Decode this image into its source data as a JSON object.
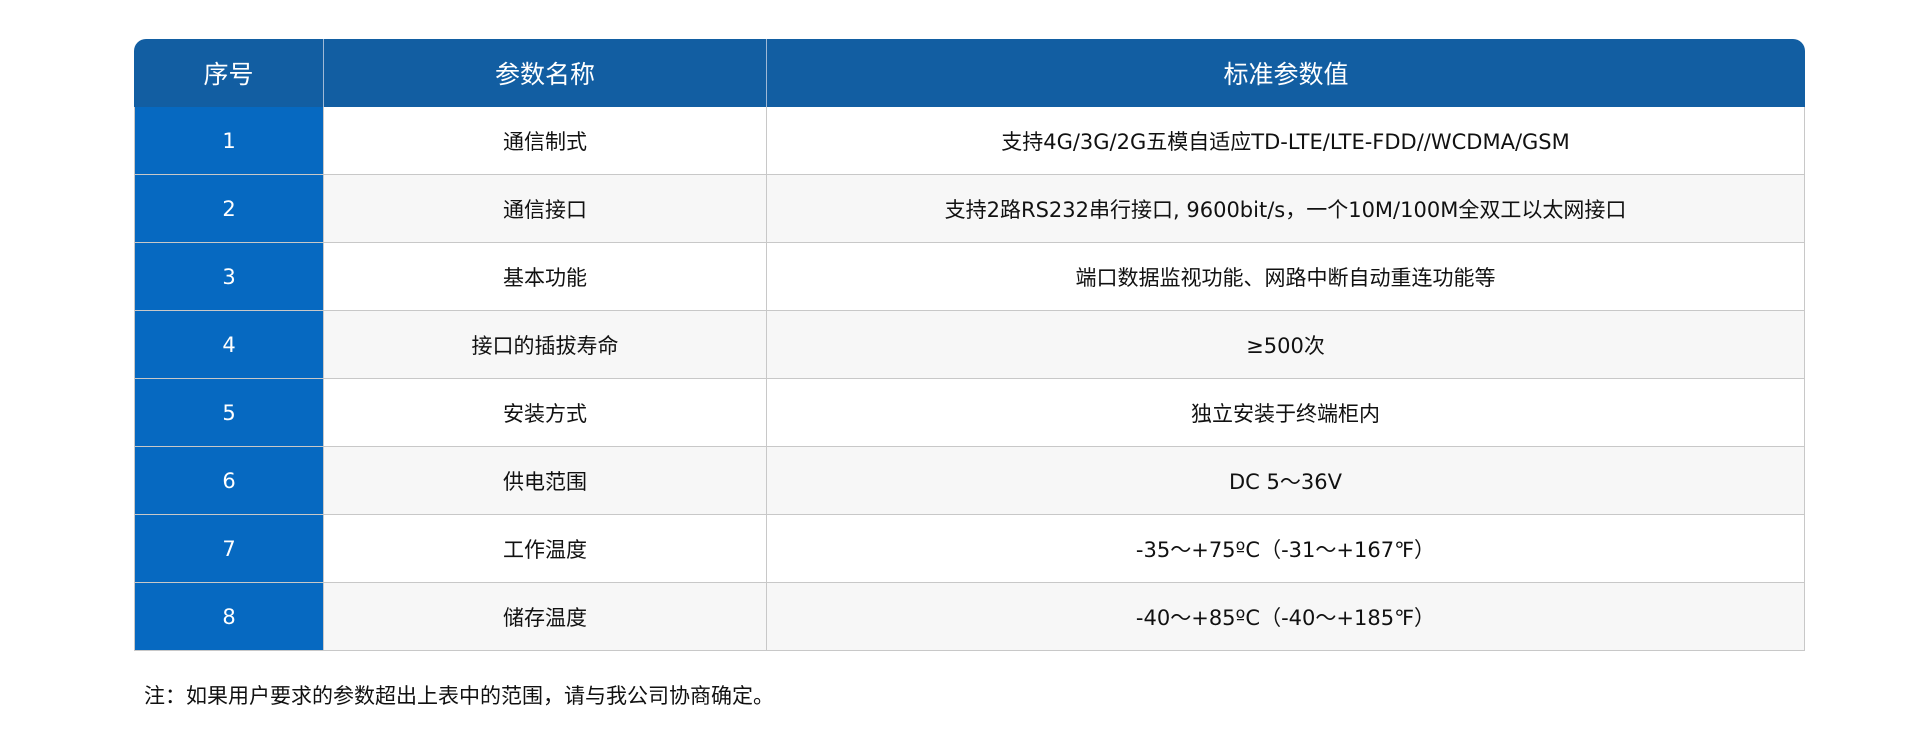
{
  "table": {
    "headers": [
      "序号",
      "参数名称",
      "标准参数值"
    ],
    "rows": [
      {
        "no": "1",
        "name": "通信制式",
        "value": "支持4G/3G/2G五模自适应TD-LTE/LTE-FDD//WCDMA/GSM"
      },
      {
        "no": "2",
        "name": "通信接口",
        "value": "支持2路RS232串行接口, 9600bit/s，一个10M/100M全双工以太网接口"
      },
      {
        "no": "3",
        "name": "基本功能",
        "value": "端口数据监视功能、网路中断自动重连功能等"
      },
      {
        "no": "4",
        "name": "接口的插拔寿命",
        "value": "≥500次"
      },
      {
        "no": "5",
        "name": "安装方式",
        "value": "独立安装于终端柜内"
      },
      {
        "no": "6",
        "name": "供电范围",
        "value": "DC 5～36V"
      },
      {
        "no": "7",
        "name": "工作温度",
        "value": "-35～+75ºC（-31～+167℉）"
      },
      {
        "no": "8",
        "name": "储存温度",
        "value": "-40～+85ºC（-40～+185℉）"
      }
    ]
  },
  "note": "注：如果用户要求的参数超出上表中的范围，请与我公司协商确定。",
  "colors": {
    "header": "#125ea2",
    "index_column": "#0669c1"
  }
}
